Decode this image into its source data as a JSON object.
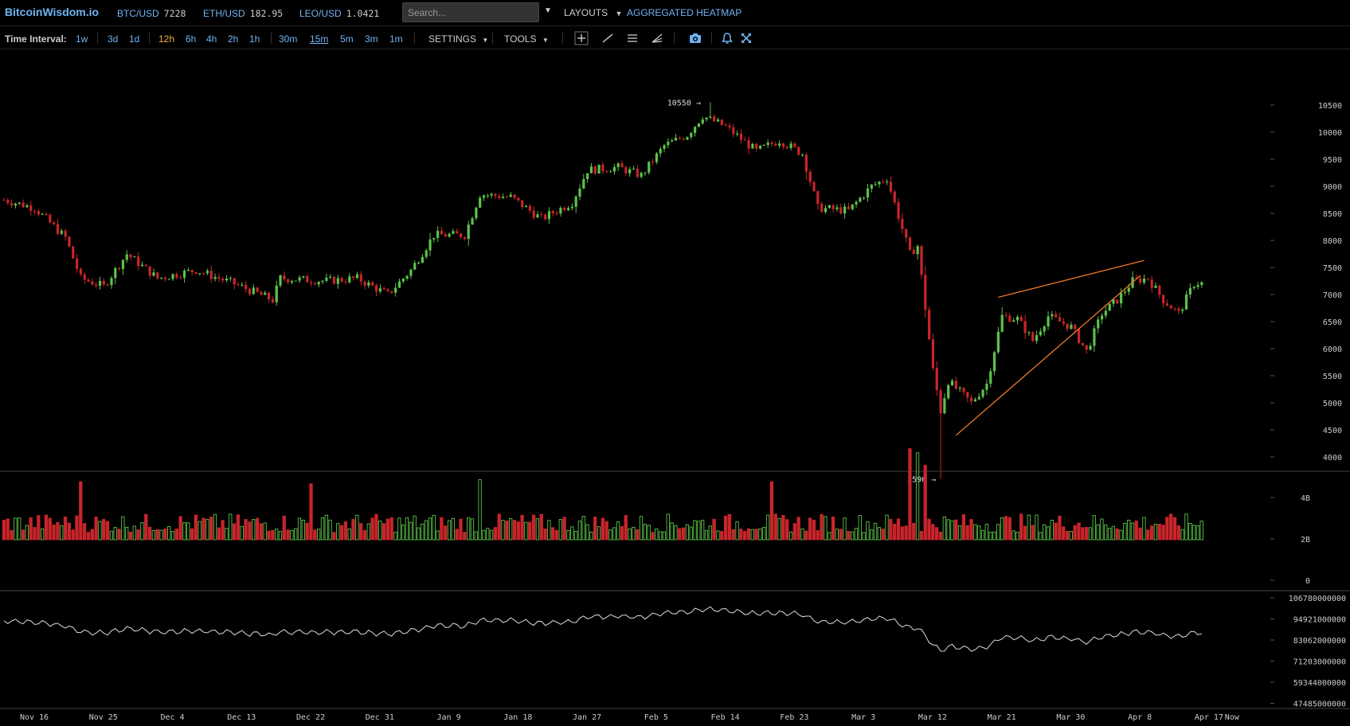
{
  "topbar": {
    "logo": "BitcoinWisdom.io",
    "tickers": [
      {
        "pair": "BTC/USD",
        "price": "7228"
      },
      {
        "pair": "ETH/USD",
        "price": "182.95"
      },
      {
        "pair": "LEO/USD",
        "price": "1.0421"
      }
    ],
    "search_placeholder": "Search...",
    "layouts_label": "LAYOUTS",
    "heatmap_label": "AGGREGATED HEATMAP"
  },
  "toolbar": {
    "time_interval_label": "Time Interval:",
    "intervals": [
      "1w",
      "3d",
      "1d",
      "12h",
      "6h",
      "4h",
      "2h",
      "1h",
      "30m",
      "15m",
      "5m",
      "3m",
      "1m"
    ],
    "active_interval": "12h",
    "underlined_interval": "15m",
    "settings_label": "SETTINGS",
    "tools_label": "TOOLS"
  },
  "colors": {
    "up": "#5cc24a",
    "down": "#c8252a",
    "trendline": "#ff7f27",
    "link": "#6fb3f2",
    "active": "#f0b04a"
  },
  "chart_data": {
    "type": "candlestick",
    "pair": "BTC/USD",
    "interval": "12h",
    "price_axis": {
      "ticks": [
        4000,
        4500,
        5000,
        5500,
        6000,
        6500,
        7000,
        7500,
        8000,
        8500,
        9000,
        9500,
        10000,
        10500
      ],
      "range": [
        3500,
        10700
      ]
    },
    "annotations": {
      "high_label": "10550",
      "high_value": 10550,
      "low_label": "3596",
      "low_value": 3596
    },
    "volume_axis": {
      "ticks": [
        "4B",
        "2B",
        "0"
      ]
    },
    "indicator_axis": {
      "ticks": [
        "106780000000",
        "94921000000",
        "83062000000",
        "71203000000",
        "59344000000",
        "47485000000"
      ]
    },
    "x_labels": [
      "Nov 16",
      "Nov 25",
      "Dec 4",
      "Dec 13",
      "Dec 22",
      "Dec 31",
      "Jan 9",
      "Jan 18",
      "Jan 27",
      "Feb 5",
      "Feb 14",
      "Feb 23",
      "Mar 3",
      "Mar 12",
      "Mar 21",
      "Mar 30",
      "Apr 8",
      "Apr 17",
      "Now"
    ],
    "x_label_days": [
      0,
      9,
      18,
      27,
      36,
      45,
      54,
      63,
      72,
      81,
      90,
      99,
      108,
      117,
      126,
      135,
      144,
      153,
      156
    ],
    "close_keypoints": [
      [
        0,
        8750
      ],
      [
        4,
        8600
      ],
      [
        8,
        8050
      ],
      [
        10,
        7300
      ],
      [
        13,
        7150
      ],
      [
        16,
        7750
      ],
      [
        20,
        7300
      ],
      [
        25,
        7450
      ],
      [
        30,
        7200
      ],
      [
        35,
        6900
      ],
      [
        36,
        7300
      ],
      [
        42,
        7250
      ],
      [
        46,
        7300
      ],
      [
        50,
        7000
      ],
      [
        53,
        7450
      ],
      [
        56,
        8100
      ],
      [
        60,
        8100
      ],
      [
        62,
        8850
      ],
      [
        66,
        8800
      ],
      [
        70,
        8400
      ],
      [
        74,
        8700
      ],
      [
        76,
        9300
      ],
      [
        80,
        9350
      ],
      [
        83,
        9200
      ],
      [
        86,
        9750
      ],
      [
        89,
        9950
      ],
      [
        91,
        10300
      ],
      [
        94,
        10100
      ],
      [
        98,
        9650
      ],
      [
        101,
        9850
      ],
      [
        104,
        9600
      ],
      [
        106,
        8600
      ],
      [
        110,
        8550
      ],
      [
        113,
        9000
      ],
      [
        115,
        9150
      ],
      [
        118,
        7750
      ],
      [
        119,
        7900
      ],
      [
        121,
        5600
      ],
      [
        122,
        4850
      ],
      [
        123,
        5400
      ],
      [
        126,
        5000
      ],
      [
        128,
        5350
      ],
      [
        130,
        6600
      ],
      [
        132,
        6550
      ],
      [
        134,
        6150
      ],
      [
        136,
        6600
      ],
      [
        139,
        6400
      ],
      [
        141,
        5950
      ],
      [
        143,
        6650
      ],
      [
        145,
        6900
      ],
      [
        147,
        7250
      ],
      [
        149,
        7300
      ],
      [
        151,
        6900
      ],
      [
        153,
        6650
      ],
      [
        155,
        7200
      ],
      [
        156,
        7228
      ]
    ],
    "volume_spikes": [
      [
        118,
        4.4
      ],
      [
        119,
        4.2
      ],
      [
        120,
        3.6
      ],
      [
        100,
        2.8
      ],
      [
        62,
        2.9
      ],
      [
        40,
        2.7
      ],
      [
        10,
        2.8
      ]
    ],
    "trendlines": [
      {
        "from": [
          129.5,
          6950
        ],
        "to": [
          148.5,
          7630
        ]
      },
      {
        "from": [
          124.0,
          4400
        ],
        "to": [
          148.0,
          7350
        ]
      }
    ]
  }
}
